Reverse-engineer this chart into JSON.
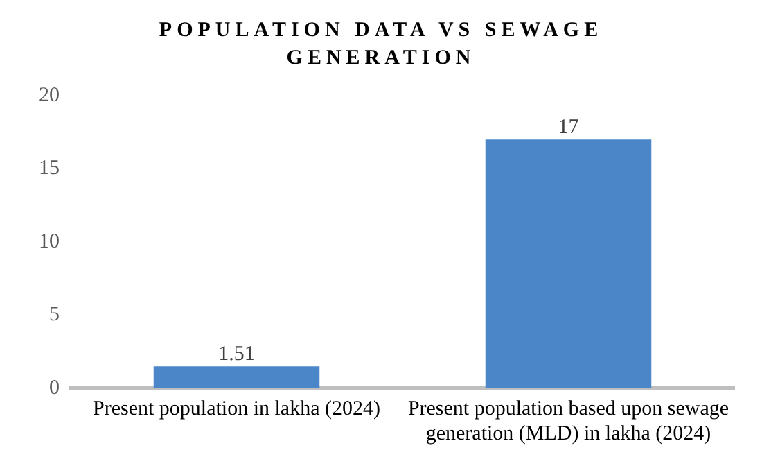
{
  "chart_data": {
    "type": "bar",
    "title": "POPULATION DATA VS SEWAGE GENERATION",
    "categories": [
      "Present population in lakha (2024)",
      "Present population based upon sewage generation (MLD) in lakha (2024)"
    ],
    "values": [
      1.51,
      17
    ],
    "color": "#4a86c8",
    "ylim": [
      0,
      20
    ],
    "yticks": [
      0,
      5,
      10,
      15,
      20
    ],
    "grid": false,
    "data_labels": true,
    "legend": false
  }
}
